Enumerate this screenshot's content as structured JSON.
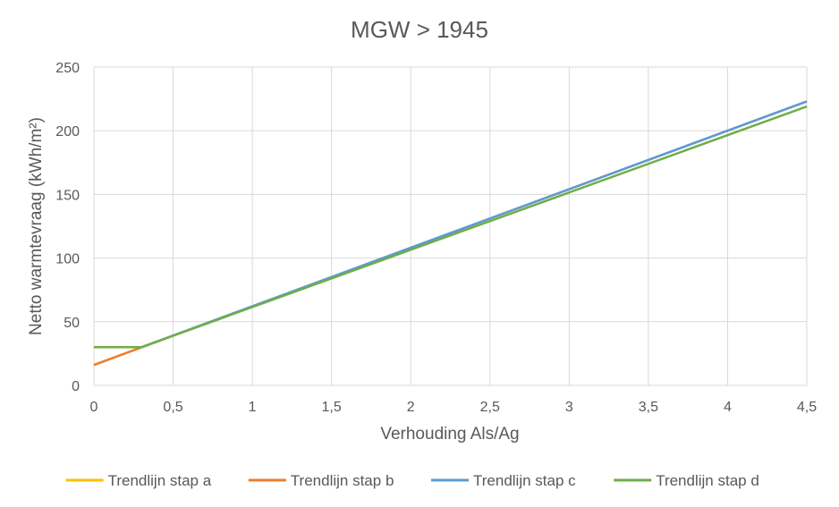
{
  "chart_data": {
    "type": "line",
    "title": "MGW > 1945",
    "xlabel": "Verhouding Als/Ag",
    "ylabel": "Netto warmtevraag (kWh/m²)",
    "xlim": [
      0,
      4.5
    ],
    "ylim": [
      0,
      250
    ],
    "x_ticks": [
      "0",
      "0,5",
      "1",
      "1,5",
      "2",
      "2,5",
      "3",
      "3,5",
      "4",
      "4,5"
    ],
    "y_ticks": [
      "0",
      "50",
      "100",
      "150",
      "200",
      "250"
    ],
    "x_tick_values": [
      0,
      0.5,
      1,
      1.5,
      2,
      2.5,
      3,
      3.5,
      4,
      4.5
    ],
    "y_tick_values": [
      0,
      50,
      100,
      150,
      200,
      250
    ],
    "grid": true,
    "legend_position": "bottom",
    "series": [
      {
        "name": "Trendlijn stap a",
        "color": "#FFC000",
        "x": [
          0,
          0.3
        ],
        "y": [
          16,
          30
        ]
      },
      {
        "name": "Trendlijn stap b",
        "color": "#ED7D31",
        "x": [
          0,
          4.5
        ],
        "y": [
          16,
          223
        ]
      },
      {
        "name": "Trendlijn stap c",
        "color": "#5B9BD5",
        "x": [
          0.3,
          4.5
        ],
        "y": [
          30,
          223
        ]
      },
      {
        "name": "Trendlijn stap d",
        "color": "#70AD47",
        "x": [
          0,
          0.3,
          4.5
        ],
        "y": [
          30,
          30,
          219
        ]
      }
    ]
  }
}
